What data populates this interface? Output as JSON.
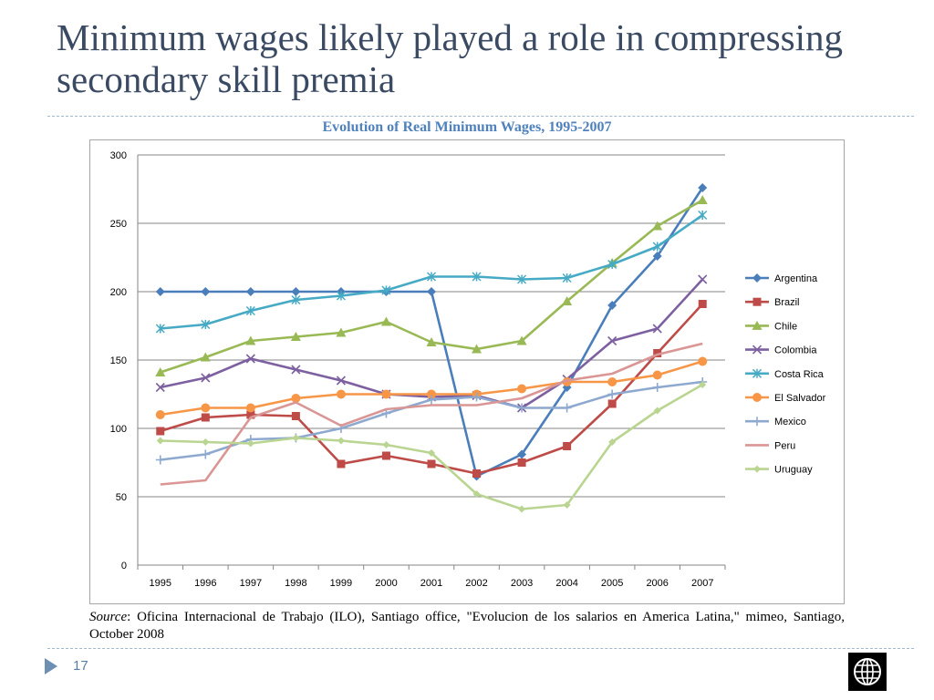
{
  "slide": {
    "title": "Minimum wages likely played a role in compressing secondary skill premia",
    "page_number": "17",
    "source_label": "Source",
    "source_text": ": Oficina Internacional de Trabajo (ILO), Santiago office, \"Evolucion de los salarios en America Latina,\" mimeo, Santiago, October 2008"
  },
  "chart_data": {
    "type": "line",
    "title": "Evolution of Real Minimum Wages, 1995-2007",
    "xlabel": "",
    "ylabel": "",
    "x": [
      "1995",
      "1996",
      "1997",
      "1998",
      "1999",
      "2000",
      "2001",
      "2002",
      "2003",
      "2004",
      "2005",
      "2006",
      "2007"
    ],
    "ylim": [
      0,
      300
    ],
    "yticks": [
      0,
      50,
      100,
      150,
      200,
      250,
      300
    ],
    "grid": true,
    "legend_position": "right",
    "series": [
      {
        "name": "Argentina",
        "color": "#4a7ebb",
        "marker": "diamond",
        "values": [
          200,
          200,
          200,
          200,
          200,
          200,
          200,
          65,
          81,
          130,
          190,
          226,
          276
        ]
      },
      {
        "name": "Brazil",
        "color": "#be4b48",
        "marker": "square",
        "values": [
          98,
          108,
          110,
          109,
          74,
          80,
          74,
          67,
          75,
          87,
          118,
          155,
          191
        ]
      },
      {
        "name": "Chile",
        "color": "#98b954",
        "marker": "triangle",
        "values": [
          141,
          152,
          164,
          167,
          170,
          178,
          163,
          158,
          164,
          193,
          221,
          248,
          267
        ]
      },
      {
        "name": "Colombia",
        "color": "#7d60a0",
        "marker": "x",
        "values": [
          130,
          137,
          151,
          143,
          135,
          125,
          123,
          124,
          115,
          136,
          164,
          173,
          209
        ]
      },
      {
        "name": "Costa Rica",
        "color": "#46aac5",
        "marker": "star",
        "values": [
          173,
          176,
          186,
          194,
          197,
          201,
          211,
          211,
          209,
          210,
          220,
          233,
          256
        ]
      },
      {
        "name": "El Salvador",
        "color": "#f79646",
        "marker": "circle",
        "values": [
          110,
          115,
          115,
          122,
          125,
          125,
          125,
          125,
          129,
          134,
          134,
          139,
          149
        ]
      },
      {
        "name": "Mexico",
        "color": "#8ea9cf",
        "marker": "plus",
        "values": [
          77,
          81,
          92,
          93,
          100,
          111,
          121,
          123,
          115,
          115,
          125,
          130,
          134
        ]
      },
      {
        "name": "Peru",
        "color": "#d99694",
        "marker": "none",
        "values": [
          59,
          62,
          108,
          119,
          102,
          114,
          117,
          117,
          122,
          135,
          140,
          154,
          162
        ]
      },
      {
        "name": "Uruguay",
        "color": "#b9d591",
        "marker": "smalldiamond",
        "values": [
          91,
          90,
          89,
          93,
          91,
          88,
          82,
          52,
          41,
          44,
          90,
          113,
          132
        ]
      }
    ]
  }
}
